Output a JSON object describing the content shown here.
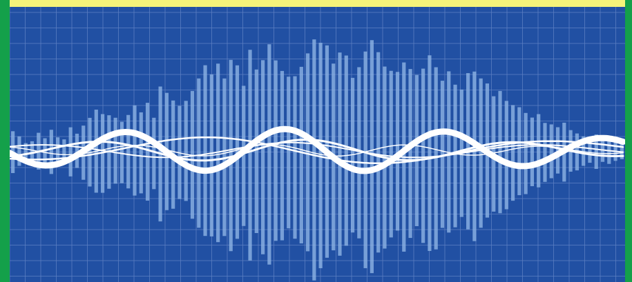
{
  "colors": {
    "background": "#2150a3",
    "grid_line": "#5d80c3",
    "bar_fill": "#8fb6e6",
    "wave": "#ffffff",
    "top_strip": "#f4f37a",
    "side_border": "#14a04a"
  },
  "bars": [
    0.17,
    0.12,
    0.06,
    0.08,
    0.15,
    0.1,
    0.18,
    0.11,
    0.09,
    0.2,
    0.14,
    0.22,
    0.28,
    0.34,
    0.32,
    0.3,
    0.27,
    0.25,
    0.3,
    0.37,
    0.33,
    0.4,
    0.29,
    0.55,
    0.48,
    0.44,
    0.38,
    0.41,
    0.52,
    0.61,
    0.7,
    0.66,
    0.73,
    0.64,
    0.78,
    0.71,
    0.57,
    0.86,
    0.67,
    0.79,
    0.9,
    0.74,
    0.69,
    0.62,
    0.66,
    0.72,
    0.81,
    0.98,
    0.92,
    0.87,
    0.76,
    0.83,
    0.78,
    0.63,
    0.7,
    0.88,
    0.95,
    0.82,
    0.74,
    0.68,
    0.65,
    0.77,
    0.69,
    0.62,
    0.71,
    0.8,
    0.74,
    0.6,
    0.66,
    0.58,
    0.52,
    0.64,
    0.69,
    0.61,
    0.55,
    0.47,
    0.5,
    0.44,
    0.39,
    0.36,
    0.33,
    0.28,
    0.3,
    0.24,
    0.22,
    0.19,
    0.24,
    0.17,
    0.15,
    0.12,
    0.1,
    0.14,
    0.09,
    0.11,
    0.08,
    0.07
  ],
  "waves": [
    {
      "amplitude": 0.44,
      "wavelength": 0.26,
      "phase": 0.2,
      "thickness": 9
    },
    {
      "amplitude": 0.22,
      "wavelength": 0.34,
      "phase": 2.1,
      "thickness": 3
    },
    {
      "amplitude": 0.16,
      "wavelength": 0.41,
      "phase": 4.0,
      "thickness": 2
    },
    {
      "amplitude": 0.28,
      "wavelength": 0.58,
      "phase": 1.3,
      "thickness": 2.5
    },
    {
      "amplitude": 0.12,
      "wavelength": 0.22,
      "phase": 5.2,
      "thickness": 1.5
    }
  ]
}
